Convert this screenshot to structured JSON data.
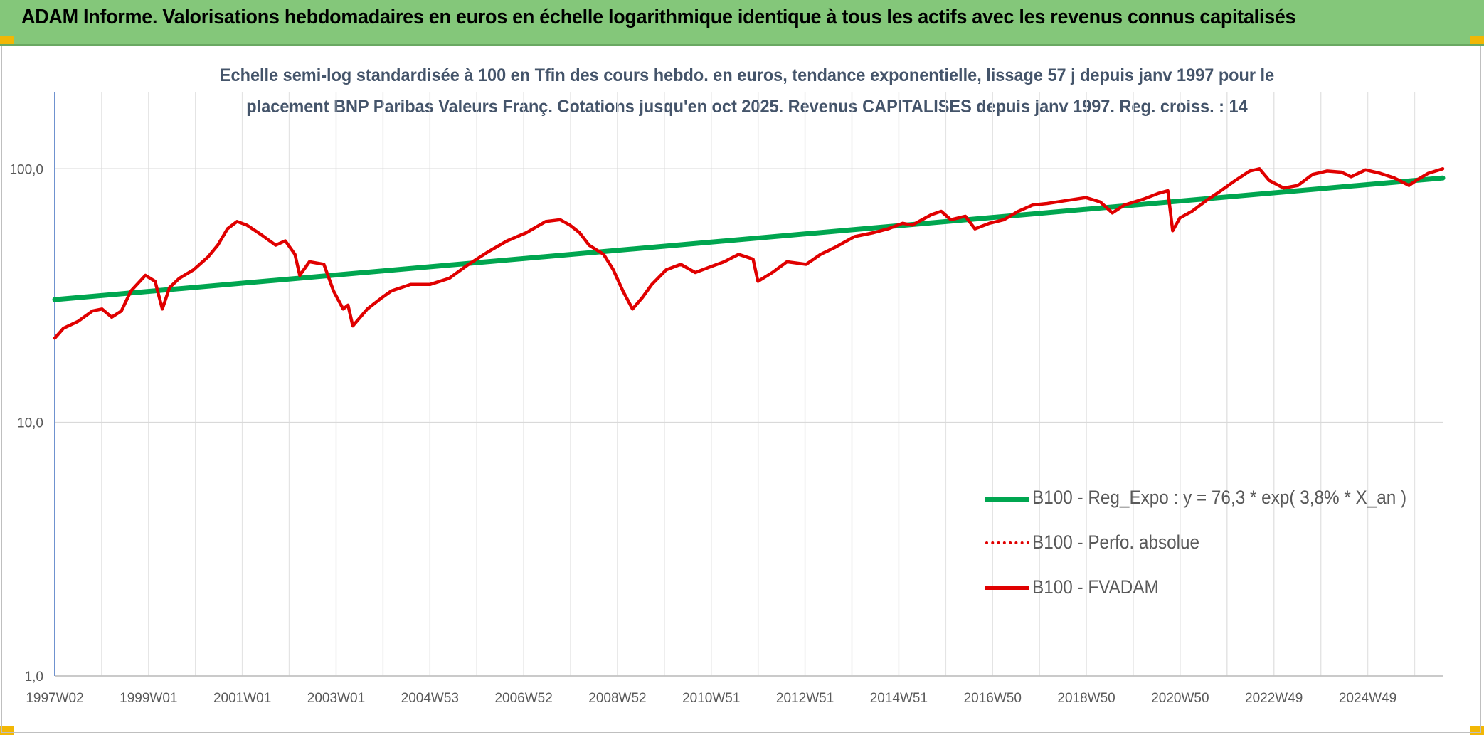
{
  "header": {
    "title": "ADAM Informe. Valorisations hebdomadaires en euros en échelle logarithmique identique à tous les actifs avec les revenus connus capitalisés"
  },
  "chart_data": {
    "type": "line",
    "subtitle_line1": "Echelle semi-log standardisée à 100 en Tfin des cours hebdo. en euros, tendance exponentielle, lissage 57 j depuis janv 1997 pour le",
    "subtitle_line2": "placement BNP Paribas Valeurs Franç. Cotations jusqu'en oct 2025. Revenus CAPITALISES depuis janv 1997. Reg. croiss. : 14",
    "y_scale": "log",
    "ylim": [
      1,
      200
    ],
    "y_ticks": [
      "1,0",
      "10,0",
      "100,0"
    ],
    "x_ticks": [
      "1997W02",
      "1999W01",
      "2001W01",
      "2003W01",
      "2004W53",
      "2006W52",
      "2008W52",
      "2010W51",
      "2012W51",
      "2014W51",
      "2016W50",
      "2018W50",
      "2020W50",
      "2022W49",
      "2024W49"
    ],
    "xlim": [
      1997.02,
      2025.8
    ],
    "grid": true,
    "legend_position": "bottom-right",
    "series": [
      {
        "name": "B100 - Reg_Expo : y = 76,3 * exp( 3,8% * X_an )",
        "color": "#00a650",
        "style": "solid",
        "points": [
          [
            1997.02,
            30.5
          ],
          [
            2025.8,
            92.0
          ]
        ]
      },
      {
        "name": "B100 - Perfo. absolue",
        "color": "#e00000",
        "style": "dotted",
        "points": []
      },
      {
        "name": "B100 - FVADAM",
        "color": "#e00000",
        "style": "solid",
        "points": [
          [
            1997.02,
            21.5
          ],
          [
            1997.2,
            23.5
          ],
          [
            1997.5,
            25
          ],
          [
            1997.8,
            27.5
          ],
          [
            1998.0,
            28
          ],
          [
            1998.2,
            26
          ],
          [
            1998.4,
            27.5
          ],
          [
            1998.6,
            33
          ],
          [
            1998.9,
            38
          ],
          [
            1999.1,
            36
          ],
          [
            1999.25,
            28
          ],
          [
            1999.4,
            34
          ],
          [
            1999.6,
            37
          ],
          [
            1999.9,
            40
          ],
          [
            2000.2,
            45
          ],
          [
            2000.4,
            50
          ],
          [
            2000.6,
            58
          ],
          [
            2000.8,
            62
          ],
          [
            2001.0,
            60
          ],
          [
            2001.3,
            55
          ],
          [
            2001.6,
            50
          ],
          [
            2001.8,
            52
          ],
          [
            2002.0,
            46
          ],
          [
            2002.1,
            38
          ],
          [
            2002.3,
            43
          ],
          [
            2002.6,
            42
          ],
          [
            2002.8,
            33
          ],
          [
            2003.0,
            28
          ],
          [
            2003.1,
            29
          ],
          [
            2003.2,
            24
          ],
          [
            2003.5,
            28
          ],
          [
            2003.8,
            31
          ],
          [
            2004.0,
            33
          ],
          [
            2004.4,
            35
          ],
          [
            2004.8,
            35
          ],
          [
            2005.2,
            37
          ],
          [
            2005.6,
            42
          ],
          [
            2006.0,
            47
          ],
          [
            2006.4,
            52
          ],
          [
            2006.8,
            56
          ],
          [
            2007.2,
            62
          ],
          [
            2007.5,
            63
          ],
          [
            2007.7,
            60
          ],
          [
            2007.9,
            56
          ],
          [
            2008.1,
            50
          ],
          [
            2008.4,
            46
          ],
          [
            2008.6,
            40
          ],
          [
            2008.8,
            33
          ],
          [
            2009.0,
            28
          ],
          [
            2009.2,
            31
          ],
          [
            2009.4,
            35
          ],
          [
            2009.7,
            40
          ],
          [
            2010.0,
            42
          ],
          [
            2010.3,
            39
          ],
          [
            2010.6,
            41
          ],
          [
            2010.9,
            43
          ],
          [
            2011.2,
            46
          ],
          [
            2011.5,
            44
          ],
          [
            2011.6,
            36
          ],
          [
            2011.9,
            39
          ],
          [
            2012.2,
            43
          ],
          [
            2012.6,
            42
          ],
          [
            2012.9,
            46
          ],
          [
            2013.2,
            49
          ],
          [
            2013.6,
            54
          ],
          [
            2014.0,
            56
          ],
          [
            2014.3,
            58
          ],
          [
            2014.6,
            61
          ],
          [
            2014.8,
            60
          ],
          [
            2015.2,
            66
          ],
          [
            2015.4,
            68
          ],
          [
            2015.6,
            63
          ],
          [
            2015.9,
            65
          ],
          [
            2016.1,
            58
          ],
          [
            2016.4,
            61
          ],
          [
            2016.7,
            63
          ],
          [
            2017.0,
            68
          ],
          [
            2017.3,
            72
          ],
          [
            2017.6,
            73
          ],
          [
            2018.0,
            75
          ],
          [
            2018.4,
            77
          ],
          [
            2018.7,
            74
          ],
          [
            2018.95,
            67
          ],
          [
            2019.2,
            72
          ],
          [
            2019.6,
            76
          ],
          [
            2019.9,
            80
          ],
          [
            2020.1,
            82
          ],
          [
            2020.2,
            57
          ],
          [
            2020.35,
            64
          ],
          [
            2020.6,
            68
          ],
          [
            2020.9,
            75
          ],
          [
            2021.2,
            82
          ],
          [
            2021.5,
            90
          ],
          [
            2021.8,
            98
          ],
          [
            2022.0,
            100
          ],
          [
            2022.2,
            90
          ],
          [
            2022.5,
            84
          ],
          [
            2022.8,
            86
          ],
          [
            2023.1,
            95
          ],
          [
            2023.4,
            98
          ],
          [
            2023.7,
            97
          ],
          [
            2023.9,
            93
          ],
          [
            2024.2,
            99
          ],
          [
            2024.5,
            96
          ],
          [
            2024.8,
            92
          ],
          [
            2025.1,
            86
          ],
          [
            2025.25,
            90
          ],
          [
            2025.5,
            96
          ],
          [
            2025.8,
            100
          ]
        ]
      }
    ]
  }
}
